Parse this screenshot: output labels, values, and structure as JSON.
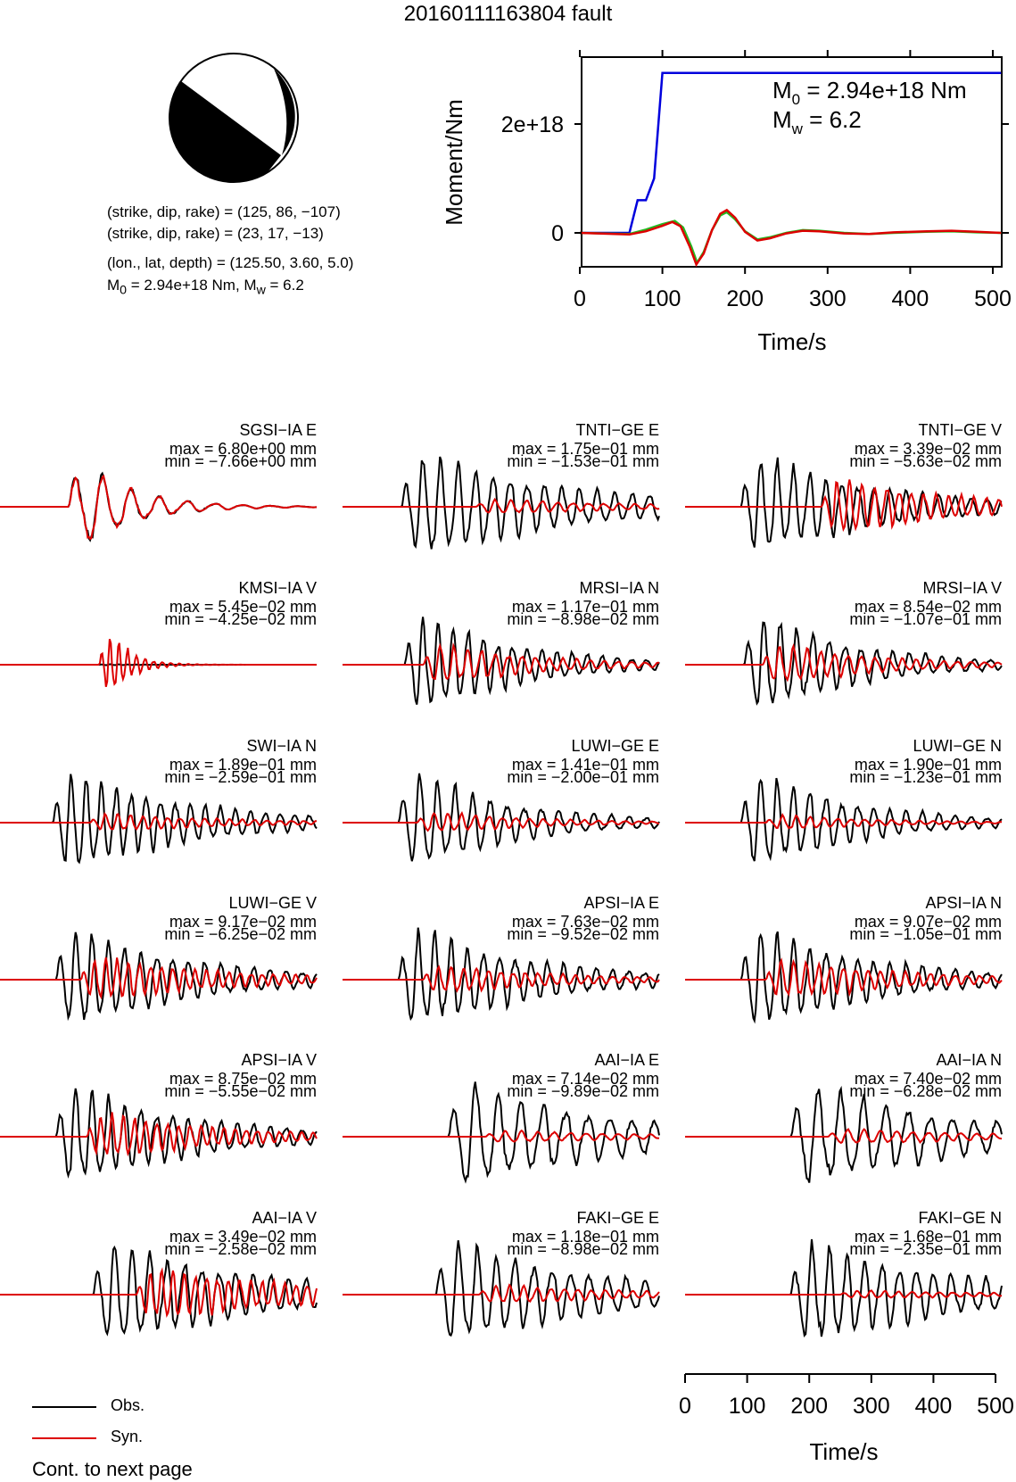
{
  "title": "20160111163804 fault",
  "focal_mechanism": {
    "plane1": "(strike, dip, rake) = (125, 86, −107)",
    "plane2": "(strike, dip, rake) = (23, 17, −13)",
    "location": "(lon., lat, depth) = (125.50, 3.60, 5.0)",
    "moment_prefix": "M",
    "moment_sub": "0",
    "moment_mid": " = 2.94e+18 Nm, M",
    "moment_sub2": "w",
    "moment_suffix": " = 6.2"
  },
  "moment_panel": {
    "m0_prefix": "M",
    "m0_sub": "0",
    "m0_value": " = 2.94e+18 Nm",
    "mw_prefix": "M",
    "mw_sub": "w",
    "mw_value": " = 6.2"
  },
  "legend": {
    "obs": "Obs.",
    "syn": "Syn.",
    "obs_color": "#000000",
    "syn_color": "#dd0000"
  },
  "footer": "Cont. to next page",
  "colors": {
    "moment_function": "#0000dd",
    "stf_green": "#22bb22",
    "stf_red": "#dd0000",
    "observed": "#000000",
    "synthetic": "#dd0000"
  },
  "chart_data": [
    {
      "type": "line",
      "title": "",
      "xlabel": "Time/s",
      "ylabel": "Moment/Nm",
      "xlim": [
        0,
        510
      ],
      "ylim": [
        -6e+17,
        3.2e+18
      ],
      "xticks": [
        "0",
        "100",
        "200",
        "300",
        "400",
        "500"
      ],
      "xtick_values": [
        0,
        100,
        200,
        300,
        400,
        500
      ],
      "yticks": [
        "0",
        "2e+18"
      ],
      "ytick_values": [
        0,
        2e+18
      ],
      "series": [
        {
          "color": "#0000dd",
          "x": [
            0,
            60,
            70,
            80,
            85,
            90,
            100,
            510
          ],
          "y": [
            0,
            0,
            6e+17,
            6e+17,
            8e+17,
            1e+18,
            2.94e+18,
            2.94e+18
          ]
        },
        {
          "color": "#22bb22",
          "x": [
            0,
            60,
            80,
            100,
            115,
            125,
            135,
            142,
            150,
            160,
            170,
            178,
            188,
            200,
            215,
            230,
            250,
            270,
            290,
            320,
            350,
            380,
            420,
            450,
            480,
            510
          ],
          "y": [
            0,
            -2e+16,
            6e+16,
            1.6e+17,
            2.2e+17,
            1e+17,
            -2.5e+17,
            -5.5e+17,
            -3.5e+17,
            5e+16,
            3.2e+17,
            3.8e+17,
            2.5e+17,
            3e+16,
            -1.2e+17,
            -8e+16,
            0.0,
            5e+16,
            4e+16,
            0.0,
            -2e+16,
            0.0,
            2e+16,
            3e+16,
            1e+16,
            0.0
          ]
        },
        {
          "color": "#dd0000",
          "x": [
            0,
            60,
            80,
            100,
            112,
            122,
            133,
            141,
            150,
            160,
            170,
            178,
            188,
            200,
            215,
            230,
            250,
            270,
            290,
            320,
            350,
            380,
            420,
            450,
            480,
            510
          ],
          "y": [
            0,
            -3e+16,
            3e+16,
            1.3e+17,
            2e+17,
            1.2e+17,
            -2.5e+17,
            -5.8e+17,
            -3.8e+17,
            5e+16,
            3.5e+17,
            4.2e+17,
            2.8e+17,
            2e+16,
            -1.4e+17,
            -1e+17,
            -1e+16,
            4e+16,
            3e+16,
            -1e+16,
            -2e+16,
            1e+16,
            3e+16,
            4e+16,
            2e+16,
            0.0
          ]
        }
      ]
    },
    {
      "type": "line",
      "title": "",
      "xlabel": "Time/s",
      "xlim": [
        0,
        510
      ],
      "xticks": [
        "0",
        "100",
        "200",
        "300",
        "400",
        "500"
      ],
      "xtick_values": [
        0,
        100,
        200,
        300,
        400,
        500
      ],
      "stations": [
        {
          "name": "SGSI−IA E",
          "max": "max = 6.80e+00 mm",
          "min": "min = −7.66e+00 mm",
          "obs_amp": 1.0,
          "syn_amp": 1.0,
          "onset": 110,
          "period": 45,
          "n_cycles": 7,
          "decay": 0.012,
          "syn_lag": 0,
          "syn_period": 45,
          "seed": 1
        },
        {
          "name": "TNTI−GE E",
          "max": "max = 1.75e−01 mm",
          "min": "min = −1.53e−01 mm",
          "obs_amp": 1.0,
          "syn_amp": 0.14,
          "onset": 95,
          "period": 28,
          "n_cycles": 14,
          "decay": 0.004,
          "syn_lag": 120,
          "syn_period": 25,
          "seed": 2
        },
        {
          "name": "TNTI−GE V",
          "max": "max = 3.39e−02 mm",
          "min": "min = −5.63e−02 mm",
          "obs_amp": 1.0,
          "syn_amp": 0.55,
          "onset": 90,
          "period": 26,
          "n_cycles": 14,
          "decay": 0.005,
          "syn_lag": 130,
          "syn_period": 20,
          "seed": 3
        },
        {
          "name": "KMSI−IA V",
          "max": "max = 5.45e−02 mm",
          "min": "min = −4.25e−02 mm",
          "obs_amp": 0.02,
          "syn_amp": 1.0,
          "onset": 160,
          "period": 14,
          "n_cycles": 6,
          "decay": 0.03,
          "syn_lag": 0,
          "syn_period": 14,
          "seed": 4
        },
        {
          "name": "MRSI−IA N",
          "max": "max = 1.17e−01 mm",
          "min": "min = −8.98e−02 mm",
          "obs_amp": 1.0,
          "syn_amp": 0.4,
          "onset": 100,
          "period": 24,
          "n_cycles": 14,
          "decay": 0.006,
          "syn_lag": 30,
          "syn_period": 22,
          "seed": 5
        },
        {
          "name": "MRSI−IA V",
          "max": "max = 8.54e−02 mm",
          "min": "min = −1.07e−01 mm",
          "obs_amp": 1.0,
          "syn_amp": 0.4,
          "onset": 95,
          "period": 26,
          "n_cycles": 14,
          "decay": 0.006,
          "syn_lag": 30,
          "syn_period": 22,
          "seed": 6
        },
        {
          "name": "SWI−IA N",
          "max": "max = 1.89e−01 mm",
          "min": "min = −2.59e−01 mm",
          "obs_amp": 1.0,
          "syn_amp": 0.18,
          "onset": 85,
          "period": 24,
          "n_cycles": 16,
          "decay": 0.005,
          "syn_lag": 60,
          "syn_period": 20,
          "seed": 7
        },
        {
          "name": "LUWI−GE E",
          "max": "max = 1.41e−01 mm",
          "min": "min = −2.00e−01 mm",
          "obs_amp": 1.0,
          "syn_amp": 0.22,
          "onset": 90,
          "period": 28,
          "n_cycles": 14,
          "decay": 0.006,
          "syn_lag": 30,
          "syn_period": 22,
          "seed": 8
        },
        {
          "name": "LUWI−GE N",
          "max": "max = 1.90e−01 mm",
          "min": "min = −1.23e−01 mm",
          "obs_amp": 1.0,
          "syn_amp": 0.15,
          "onset": 90,
          "period": 26,
          "n_cycles": 14,
          "decay": 0.006,
          "syn_lag": 40,
          "syn_period": 22,
          "seed": 9
        },
        {
          "name": "LUWI−GE V",
          "max": "max = 9.17e−02 mm",
          "min": "min = −6.25e−02 mm",
          "obs_amp": 1.0,
          "syn_amp": 0.45,
          "onset": 90,
          "period": 26,
          "n_cycles": 14,
          "decay": 0.005,
          "syn_lag": 40,
          "syn_period": 18,
          "seed": 10
        },
        {
          "name": "APSI−IA E",
          "max": "max = 7.63e−02 mm",
          "min": "min = −9.52e−02 mm",
          "obs_amp": 1.0,
          "syn_amp": 0.28,
          "onset": 90,
          "period": 26,
          "n_cycles": 14,
          "decay": 0.005,
          "syn_lag": 40,
          "syn_period": 20,
          "seed": 11
        },
        {
          "name": "APSI−IA N",
          "max": "max = 9.07e−02 mm",
          "min": "min = −1.05e−01 mm",
          "obs_amp": 1.0,
          "syn_amp": 0.4,
          "onset": 90,
          "period": 26,
          "n_cycles": 14,
          "decay": 0.005,
          "syn_lag": 40,
          "syn_period": 20,
          "seed": 12
        },
        {
          "name": "APSI−IA V",
          "max": "max = 8.75e−02 mm",
          "min": "min = −5.55e−02 mm",
          "obs_amp": 1.0,
          "syn_amp": 0.45,
          "onset": 90,
          "period": 26,
          "n_cycles": 14,
          "decay": 0.005,
          "syn_lag": 50,
          "syn_period": 18,
          "seed": 13
        },
        {
          "name": "AAI−IA E",
          "max": "max = 7.14e−02 mm",
          "min": "min = −9.89e−02 mm",
          "obs_amp": 1.0,
          "syn_amp": 0.12,
          "onset": 170,
          "period": 36,
          "n_cycles": 9,
          "decay": 0.004,
          "syn_lag": 60,
          "syn_period": 26,
          "seed": 14
        },
        {
          "name": "AAI−IA N",
          "max": "max = 7.40e−02 mm",
          "min": "min = −6.28e−02 mm",
          "obs_amp": 1.0,
          "syn_amp": 0.15,
          "onset": 170,
          "period": 36,
          "n_cycles": 9,
          "decay": 0.004,
          "syn_lag": 60,
          "syn_period": 26,
          "seed": 15
        },
        {
          "name": "AAI−IA V",
          "max": "max = 3.49e−02 mm",
          "min": "min = −2.58e−02 mm",
          "obs_amp": 1.0,
          "syn_amp": 0.5,
          "onset": 150,
          "period": 28,
          "n_cycles": 12,
          "decay": 0.004,
          "syn_lag": 70,
          "syn_period": 18,
          "seed": 16
        },
        {
          "name": "FAKI−GE E",
          "max": "max = 1.18e−01 mm",
          "min": "min = −8.98e−02 mm",
          "obs_amp": 1.0,
          "syn_amp": 0.18,
          "onset": 150,
          "period": 30,
          "n_cycles": 12,
          "decay": 0.004,
          "syn_lag": 70,
          "syn_period": 22,
          "seed": 17
        },
        {
          "name": "FAKI−GE N",
          "max": "max = 1.68e−01 mm",
          "min": "min = −2.35e−01 mm",
          "obs_amp": 1.0,
          "syn_amp": 0.08,
          "onset": 170,
          "period": 28,
          "n_cycles": 12,
          "decay": 0.004,
          "syn_lag": 80,
          "syn_period": 22,
          "seed": 18
        }
      ]
    }
  ]
}
